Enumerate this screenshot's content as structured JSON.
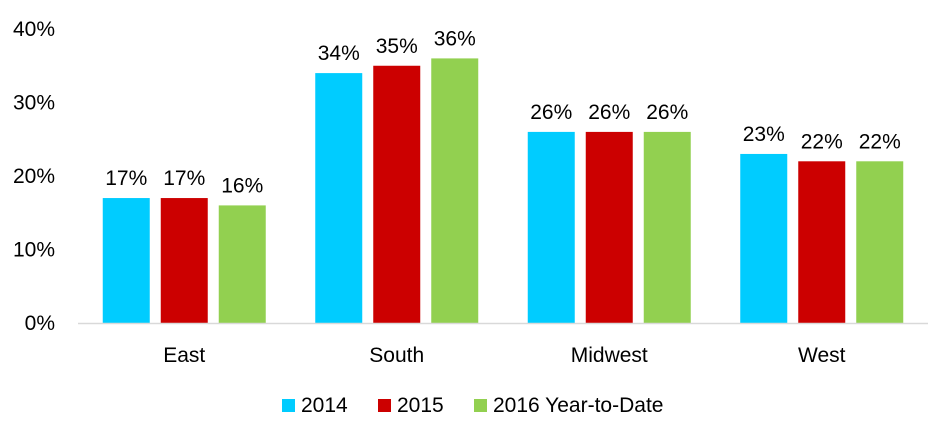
{
  "chart_data": {
    "type": "bar",
    "categories": [
      "East",
      "South",
      "Midwest",
      "West"
    ],
    "series": [
      {
        "name": "2014",
        "values": [
          17,
          34,
          26,
          23
        ],
        "labels": [
          "17%",
          "34%",
          "26%",
          "23%"
        ],
        "color": "#00CCFF"
      },
      {
        "name": "2015",
        "values": [
          17,
          35,
          26,
          22
        ],
        "labels": [
          "17%",
          "35%",
          "26%",
          "22%"
        ],
        "color": "#CC0000"
      },
      {
        "name": "2016 Year-to-Date",
        "values": [
          16,
          36,
          26,
          22
        ],
        "labels": [
          "16%",
          "36%",
          "26%",
          "22%"
        ],
        "color": "#92D050"
      }
    ],
    "y_ticks": [
      {
        "value": 0,
        "label": "0%"
      },
      {
        "value": 10,
        "label": "10%"
      },
      {
        "value": 20,
        "label": "20%"
      },
      {
        "value": 30,
        "label": "30%"
      },
      {
        "value": 40,
        "label": "40%"
      }
    ],
    "ylim": [
      0,
      40
    ],
    "title": "",
    "xlabel": "",
    "ylabel": "",
    "grid": false,
    "legend_position": "bottom-center"
  }
}
